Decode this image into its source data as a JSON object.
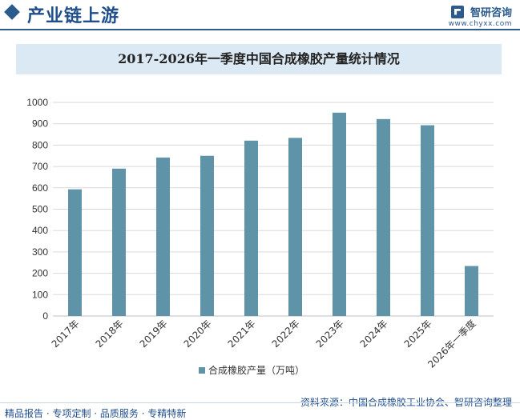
{
  "header": {
    "title": "产业链上游",
    "brand": "智研咨询",
    "url": "www.chyxx.com"
  },
  "chart_data": {
    "type": "bar",
    "title": "2017-2026年一季度中国合成橡胶产量统计情况",
    "categories": [
      "2017年",
      "2018年",
      "2019年",
      "2020年",
      "2021年",
      "2022年",
      "2023年",
      "2024年",
      "2025年",
      "2026年一季度"
    ],
    "series": [
      {
        "name": "合成橡胶产量（万吨）",
        "values": [
          593,
          690,
          742,
          750,
          821,
          834,
          952,
          922,
          893,
          234
        ]
      }
    ],
    "ylim": [
      0,
      1000
    ],
    "yticks": [
      "0",
      "100",
      "200",
      "300",
      "400",
      "500",
      "600",
      "700",
      "800",
      "900",
      "1000"
    ],
    "grid": true,
    "legend": "bottom",
    "colors": {
      "bar": "#5f93a8",
      "grid": "#d9d9d9",
      "axis": "#bfbfbf"
    }
  },
  "footer": {
    "tags": "精品报告 · 专项定制 · 品质服务 · 专精特新",
    "source": "资料来源：中国合成橡胶工业协会、智研咨询整理"
  }
}
